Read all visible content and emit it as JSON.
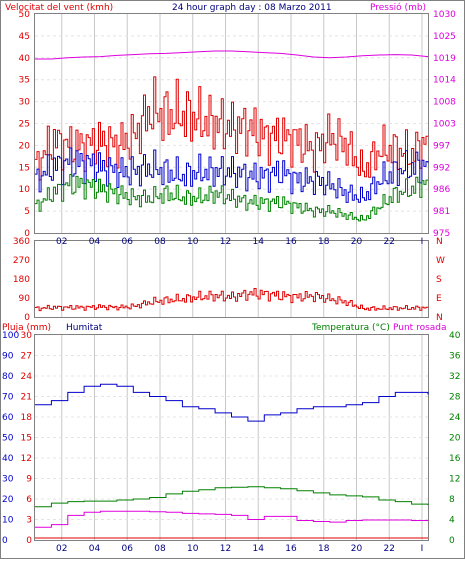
{
  "header": {
    "wind_title": "Velocitat del vent (kmh)",
    "graph_title": "24 hour graph day : 08 Marzo 2011",
    "pressure_title": "Pressió (mb)"
  },
  "colors": {
    "red": "#e00000",
    "blue": "#0000cc",
    "green": "#008000",
    "magenta": "#dd00dd",
    "dark": "#000080",
    "grid": "#c8c8c8"
  },
  "x_ticks": [
    "02",
    "04",
    "06",
    "08",
    "10",
    "12",
    "14",
    "16",
    "18",
    "20",
    "22",
    "I"
  ],
  "chart_data": [
    {
      "type": "line",
      "panel": "wind_pressure",
      "title": "24 hour graph day : 08 Marzo 2011",
      "x_hours": [
        0,
        1,
        2,
        3,
        4,
        5,
        6,
        7,
        8,
        9,
        10,
        11,
        12,
        13,
        14,
        15,
        16,
        17,
        18,
        19,
        20,
        21,
        22,
        23,
        24
      ],
      "left_axis": {
        "label": "Velocitat del vent (kmh)",
        "ylim": [
          0,
          50
        ],
        "ticks": [
          0,
          5,
          10,
          15,
          20,
          25,
          30,
          35,
          40,
          45,
          50
        ]
      },
      "right_axis": {
        "label": "Pressió (mb)",
        "ylim": [
          975,
          1030
        ],
        "ticks": [
          975,
          981,
          986,
          992,
          997,
          1003,
          1008,
          1014,
          1019,
          1025,
          1030
        ]
      },
      "series": [
        {
          "name": "",
          "axis": "left",
          "color": "red",
          "values": [
            15,
            21,
            20,
            20,
            21,
            20,
            22,
            28,
            27,
            27,
            26,
            25,
            24,
            24,
            22,
            22,
            21,
            19,
            22,
            20,
            14,
            19,
            19,
            18,
            22
          ]
        },
        {
          "name": "",
          "axis": "left",
          "color": "blue",
          "values": [
            12,
            15,
            16,
            16,
            15,
            14,
            14,
            15,
            14,
            13,
            14,
            14,
            14,
            13,
            13,
            14,
            12,
            12,
            11,
            9,
            8,
            12,
            14,
            15,
            16
          ]
        },
        {
          "name": "",
          "axis": "left",
          "color": "green",
          "values": [
            6,
            9,
            11,
            11,
            10,
            9,
            8,
            8,
            9,
            8,
            8,
            9,
            8,
            7,
            7,
            7,
            6,
            5,
            5,
            4,
            3,
            6,
            9,
            10,
            12
          ]
        },
        {
          "name": "Pressió (mb)",
          "axis": "right",
          "color": "magenta",
          "values": [
            1018.7,
            1018.7,
            1019.0,
            1019.2,
            1019.3,
            1019.6,
            1019.8,
            1020.0,
            1020.1,
            1020.3,
            1020.5,
            1020.7,
            1020.7,
            1020.5,
            1020.3,
            1020.1,
            1019.7,
            1019.2,
            1019.0,
            1019.2,
            1019.5,
            1019.7,
            1019.8,
            1019.7,
            1019.3
          ]
        }
      ]
    },
    {
      "type": "line",
      "panel": "wind_direction",
      "x_hours": [
        0,
        1,
        2,
        3,
        4,
        5,
        6,
        7,
        8,
        9,
        10,
        11,
        12,
        13,
        14,
        15,
        16,
        17,
        18,
        19,
        20,
        21,
        22,
        23,
        24
      ],
      "left_axis": {
        "ylim": [
          0,
          360
        ],
        "ticks": [
          0,
          90,
          180,
          270,
          360
        ]
      },
      "right_axis_labels": [
        "N",
        "W",
        "S",
        "E",
        "N"
      ],
      "series": [
        {
          "name": "",
          "axis": "left",
          "color": "red",
          "values": [
            40,
            45,
            45,
            45,
            48,
            45,
            50,
            70,
            80,
            85,
            95,
            100,
            95,
            110,
            110,
            100,
            95,
            100,
            85,
            70,
            40,
            40,
            42,
            42,
            45
          ]
        }
      ]
    },
    {
      "type": "line",
      "panel": "humidity_temperature",
      "x_hours": [
        0,
        1,
        2,
        3,
        4,
        5,
        6,
        7,
        8,
        9,
        10,
        11,
        12,
        13,
        14,
        15,
        16,
        17,
        18,
        19,
        20,
        21,
        22,
        23,
        24
      ],
      "left_axis_1": {
        "label": "Pluja (mm)",
        "ylim": [
          0,
          30
        ],
        "ticks": [
          0,
          3,
          6,
          9,
          12,
          15,
          18,
          21,
          24,
          27,
          30
        ]
      },
      "left_axis_2": {
        "label": "Humitat",
        "ylim": [
          0,
          100
        ],
        "ticks": [
          0,
          10,
          20,
          30,
          40,
          50,
          60,
          70,
          80,
          90,
          100
        ]
      },
      "right_axis": {
        "label": "Temperatura (°C)",
        "ylim": [
          0,
          40
        ],
        "ticks": [
          0,
          4,
          8,
          12,
          16,
          20,
          24,
          28,
          32,
          36,
          40
        ]
      },
      "right_axis_label_2": "Punt rosada",
      "series": [
        {
          "name": "Humitat",
          "axis": "left_2",
          "color": "blue",
          "values": [
            66,
            68,
            72,
            75,
            76,
            75,
            72,
            70,
            68,
            65,
            64,
            62,
            60,
            58,
            61,
            62,
            64,
            65,
            65,
            66,
            67,
            70,
            72,
            72,
            71
          ]
        },
        {
          "name": "Temperatura (°C)",
          "axis": "right",
          "color": "green",
          "values": [
            6.5,
            7.2,
            7.5,
            7.6,
            7.6,
            7.8,
            8.0,
            8.3,
            9.0,
            9.5,
            9.8,
            10.2,
            10.3,
            10.4,
            10.2,
            10.0,
            9.6,
            9.2,
            8.8,
            8.6,
            8.4,
            7.8,
            7.5,
            7.0,
            6.8
          ]
        },
        {
          "name": "Punt rosada",
          "axis": "right",
          "color": "magenta",
          "values": [
            2.5,
            3.0,
            4.8,
            5.4,
            5.6,
            5.6,
            5.6,
            5.5,
            5.4,
            5.2,
            5.1,
            5.0,
            4.8,
            4.0,
            4.6,
            4.6,
            3.8,
            3.6,
            3.5,
            3.8,
            3.9,
            3.9,
            3.9,
            3.8,
            3.7
          ]
        },
        {
          "name": "Pluja (mm)",
          "axis": "left_1",
          "color": "red",
          "values": [
            0,
            0,
            0,
            0,
            0,
            0,
            0,
            0,
            0,
            0,
            0,
            0,
            0,
            0,
            0,
            0,
            0,
            0,
            0,
            0,
            0,
            0,
            0,
            0,
            0
          ]
        }
      ]
    }
  ],
  "panels": {
    "p1": {
      "left_ticks": [
        "0",
        "5",
        "10",
        "15",
        "20",
        "25",
        "30",
        "35",
        "40",
        "45",
        "50"
      ],
      "right_ticks": [
        "975",
        "981",
        "986",
        "992",
        "997",
        "1003",
        "1008",
        "1014",
        "1019",
        "1025",
        "1030"
      ]
    },
    "p2": {
      "left_ticks": [
        "0",
        "90",
        "180",
        "270",
        "360"
      ],
      "compass": [
        "N",
        "W",
        "S",
        "E",
        "N"
      ]
    },
    "p3": {
      "rain_ticks": [
        "0",
        "3",
        "6",
        "9",
        "12",
        "15",
        "18",
        "21",
        "24",
        "27",
        "30"
      ],
      "hum_ticks": [
        "0",
        "10",
        "20",
        "30",
        "40",
        "50",
        "60",
        "70",
        "80",
        "90",
        "100"
      ],
      "temp_ticks": [
        "0",
        "4",
        "8",
        "12",
        "16",
        "20",
        "24",
        "28",
        "32",
        "36",
        "40"
      ],
      "rain_label": "Pluja (mm)",
      "humidity_label": "Humitat",
      "temp_label": "Temperatura (°C)",
      "dew_label": "Punt rosada"
    }
  }
}
